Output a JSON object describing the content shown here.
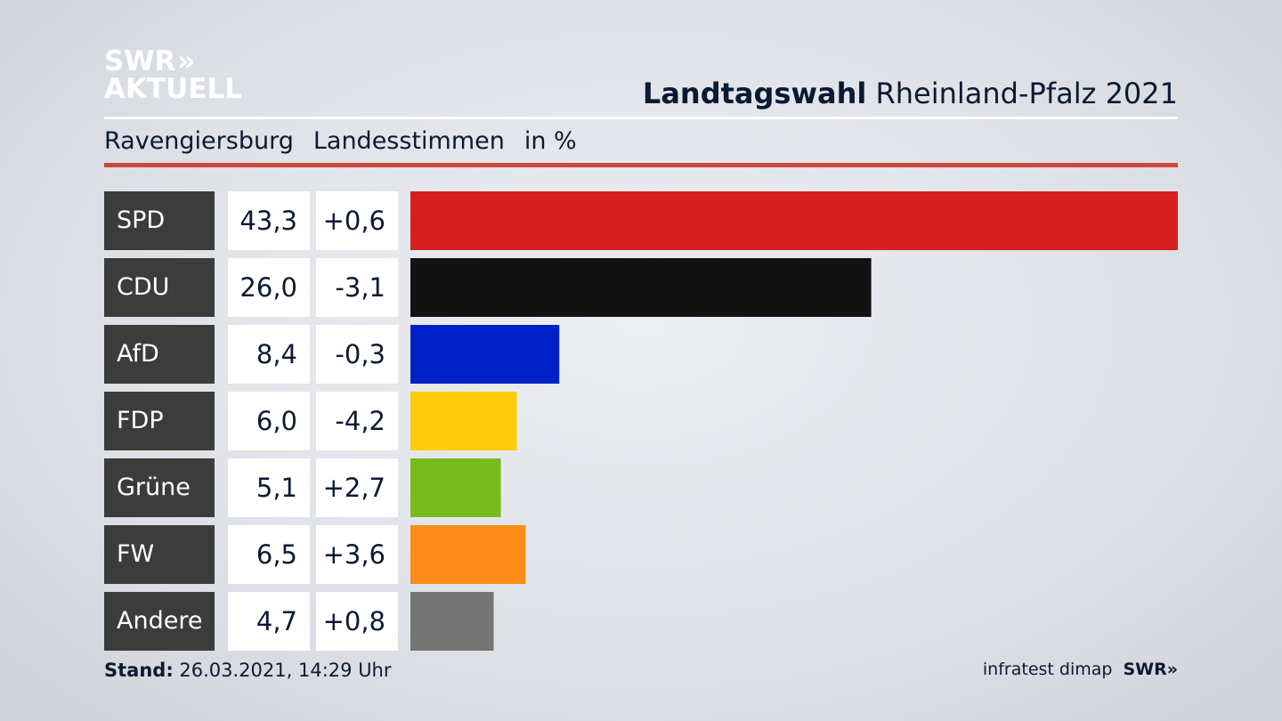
{
  "logo": {
    "line1": "SWR",
    "arrows": "»",
    "line2": "AKTUELL"
  },
  "header": {
    "title_bold": "Landtagswahl",
    "title_rest": "Rheinland-Pfalz 2021"
  },
  "subheader": {
    "place": "Ravengiersburg",
    "type": "Landesstimmen",
    "unit": "in %"
  },
  "footer": {
    "stand_label": "Stand:",
    "stand_value": "26.03.2021, 14:29 Uhr",
    "source": "infratest dimap",
    "brand": "SWR»"
  },
  "chart_data": {
    "type": "bar",
    "orientation": "horizontal",
    "categories": [
      "SPD",
      "CDU",
      "AfD",
      "FDP",
      "Grüne",
      "FW",
      "Andere"
    ],
    "values": [
      43.3,
      26.0,
      8.4,
      6.0,
      5.1,
      6.5,
      4.7
    ],
    "value_labels": [
      "43,3",
      "26,0",
      "8,4",
      "6,0",
      "5,1",
      "6,5",
      "4,7"
    ],
    "change_labels": [
      "+0,6",
      "-3,1",
      "-0,3",
      "-4,2",
      "+2,7",
      "+3,6",
      "+0,8"
    ],
    "colors": [
      "#d61e1e",
      "#121212",
      "#0021c8",
      "#ffcc0a",
      "#78bb1d",
      "#ff8c18",
      "#757575"
    ],
    "xlim": [
      0,
      43.3
    ]
  }
}
